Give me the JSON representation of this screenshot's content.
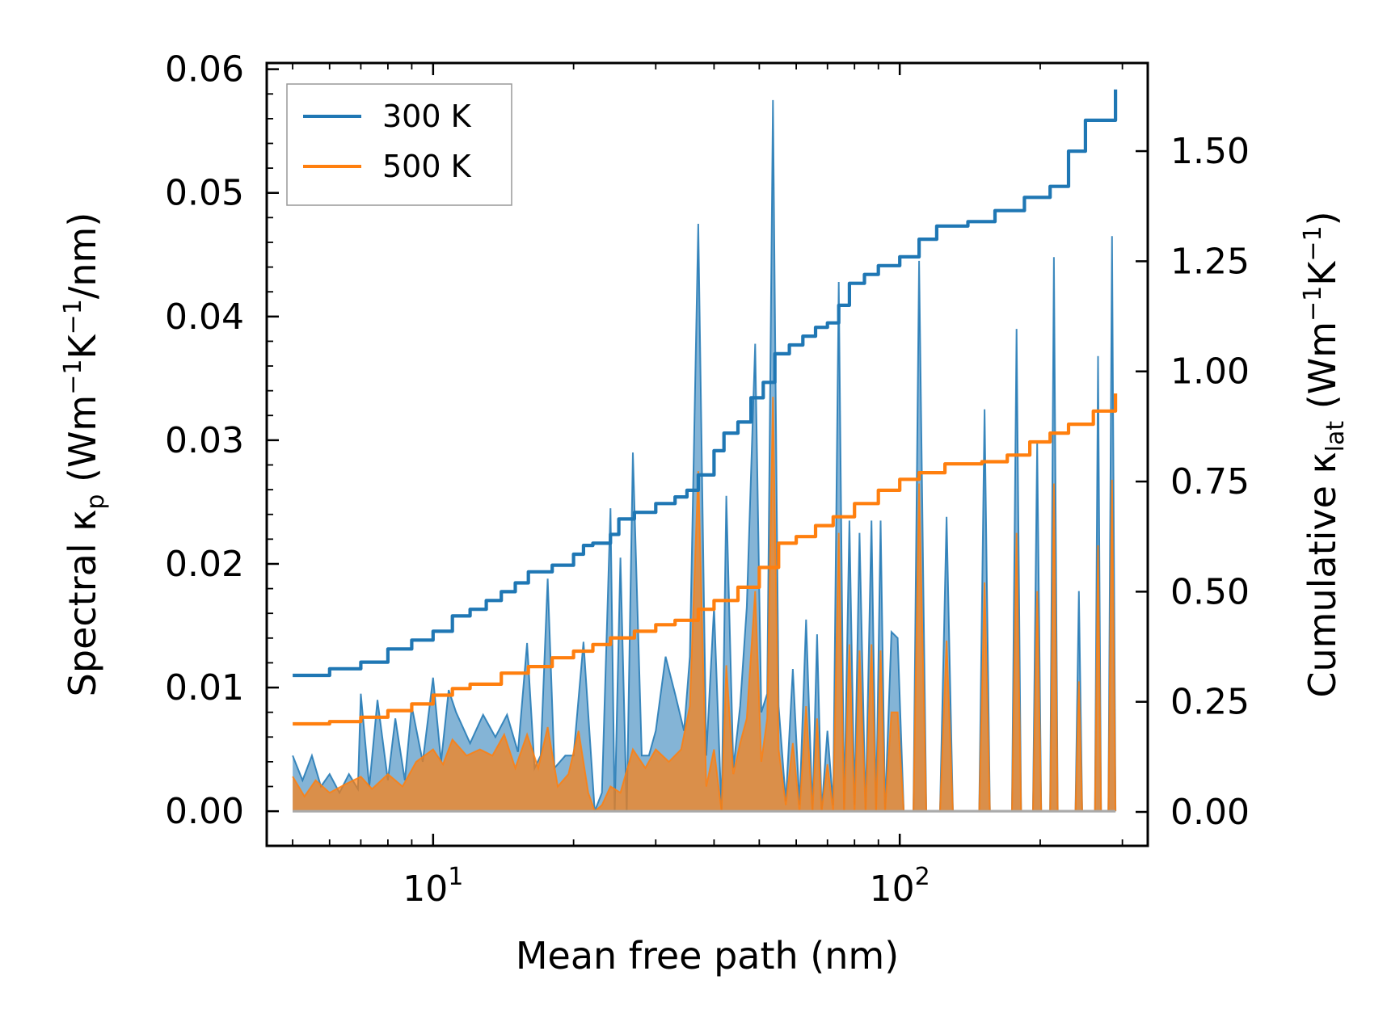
{
  "chart_data": {
    "type": "line",
    "title": "",
    "xlabel": "Mean free path (nm)",
    "xscale": "log",
    "xlim": [
      4.4,
      340
    ],
    "x_tick_labels": [
      {
        "value": 10,
        "base": "10",
        "exp": "1"
      },
      {
        "value": 100,
        "base": "10",
        "exp": "2"
      }
    ],
    "ylabel_left": {
      "pre": "Spectral κ",
      "sub": "p",
      "mid": " (Wm",
      "sup1": "−1",
      "k": "K",
      "sup2": "−1",
      "post": "/nm)"
    },
    "ylim_left": [
      -0.0028,
      0.0605
    ],
    "yticks_left": [
      0.0,
      0.01,
      0.02,
      0.03,
      0.04,
      0.05,
      0.06
    ],
    "ytick_labels_left": [
      "0.00",
      "0.01",
      "0.02",
      "0.03",
      "0.04",
      "0.05",
      "0.06"
    ],
    "ylabel_right": {
      "pre": "Cumulative κ",
      "sub": "lat",
      "mid": " (Wm",
      "sup1": "−1",
      "k": "K",
      "sup2": "−1",
      "post": ")"
    },
    "ylim_right": [
      -0.077,
      1.7
    ],
    "yticks_right": [
      0.0,
      0.25,
      0.5,
      0.75,
      1.0,
      1.25,
      1.5
    ],
    "ytick_labels_right": [
      "0.00",
      "0.25",
      "0.50",
      "0.75",
      "1.00",
      "1.25",
      "1.50"
    ],
    "legend": {
      "position": "top-left",
      "entries": [
        {
          "label": "300 K",
          "color": "#1f77b4"
        },
        {
          "label": "500 K",
          "color": "#ff7f0e"
        }
      ]
    },
    "series": [
      {
        "name": "300 K",
        "color": "#1f77b4",
        "axis": "right",
        "kind": "cumulative",
        "points": [
          [
            5.0,
            0.31
          ],
          [
            6.0,
            0.325
          ],
          [
            7.0,
            0.34
          ],
          [
            8.0,
            0.37
          ],
          [
            9.0,
            0.39
          ],
          [
            10.0,
            0.41
          ],
          [
            11.0,
            0.445
          ],
          [
            12.0,
            0.46
          ],
          [
            13.0,
            0.48
          ],
          [
            14.0,
            0.5
          ],
          [
            15.0,
            0.52
          ],
          [
            16.0,
            0.545
          ],
          [
            18.0,
            0.56
          ],
          [
            20.0,
            0.585
          ],
          [
            21.0,
            0.605
          ],
          [
            22.0,
            0.61
          ],
          [
            24.0,
            0.63
          ],
          [
            25.0,
            0.665
          ],
          [
            27.0,
            0.68
          ],
          [
            30.0,
            0.7
          ],
          [
            33.0,
            0.715
          ],
          [
            35.0,
            0.73
          ],
          [
            37.0,
            0.765
          ],
          [
            40.0,
            0.82
          ],
          [
            42.0,
            0.86
          ],
          [
            45.0,
            0.885
          ],
          [
            48.0,
            0.94
          ],
          [
            51.0,
            0.975
          ],
          [
            54.0,
            1.04
          ],
          [
            58.0,
            1.06
          ],
          [
            62.0,
            1.08
          ],
          [
            66.0,
            1.1
          ],
          [
            70.0,
            1.11
          ],
          [
            74.0,
            1.15
          ],
          [
            78.0,
            1.2
          ],
          [
            84.0,
            1.22
          ],
          [
            90.0,
            1.24
          ],
          [
            100.0,
            1.26
          ],
          [
            110.0,
            1.3
          ],
          [
            120.0,
            1.33
          ],
          [
            140.0,
            1.34
          ],
          [
            160.0,
            1.365
          ],
          [
            185.0,
            1.395
          ],
          [
            210.0,
            1.42
          ],
          [
            230.0,
            1.5
          ],
          [
            250.0,
            1.57
          ],
          [
            290.0,
            1.64
          ]
        ]
      },
      {
        "name": "500 K",
        "color": "#ff7f0e",
        "axis": "right",
        "kind": "cumulative",
        "points": [
          [
            5.0,
            0.2
          ],
          [
            6.0,
            0.205
          ],
          [
            7.0,
            0.215
          ],
          [
            8.0,
            0.23
          ],
          [
            9.0,
            0.245
          ],
          [
            10.0,
            0.265
          ],
          [
            11.0,
            0.28
          ],
          [
            12.0,
            0.29
          ],
          [
            14.0,
            0.315
          ],
          [
            16.0,
            0.33
          ],
          [
            18.0,
            0.35
          ],
          [
            20.0,
            0.365
          ],
          [
            22.0,
            0.38
          ],
          [
            24.0,
            0.395
          ],
          [
            27.0,
            0.41
          ],
          [
            30.0,
            0.425
          ],
          [
            33.0,
            0.435
          ],
          [
            37.0,
            0.46
          ],
          [
            40.0,
            0.48
          ],
          [
            45.0,
            0.51
          ],
          [
            50.0,
            0.555
          ],
          [
            55.0,
            0.61
          ],
          [
            60.0,
            0.625
          ],
          [
            66.0,
            0.65
          ],
          [
            72.0,
            0.67
          ],
          [
            80.0,
            0.7
          ],
          [
            90.0,
            0.73
          ],
          [
            100.0,
            0.755
          ],
          [
            110.0,
            0.77
          ],
          [
            125.0,
            0.79
          ],
          [
            150.0,
            0.795
          ],
          [
            170.0,
            0.81
          ],
          [
            190.0,
            0.84
          ],
          [
            210.0,
            0.86
          ],
          [
            230.0,
            0.88
          ],
          [
            260.0,
            0.91
          ],
          [
            290.0,
            0.95
          ]
        ]
      },
      {
        "name": "300 K spectral",
        "color": "#1f77b4",
        "axis": "left",
        "kind": "spectral",
        "points": [
          [
            5.0,
            0.0045
          ],
          [
            5.25,
            0.0025
          ],
          [
            5.5,
            0.0045
          ],
          [
            5.75,
            0.002
          ],
          [
            6.0,
            0.003
          ],
          [
            6.3,
            0.0015
          ],
          [
            6.6,
            0.003
          ],
          [
            6.9,
            0.0018
          ],
          [
            7.0,
            0.0095
          ],
          [
            7.3,
            0.002
          ],
          [
            7.6,
            0.009
          ],
          [
            8.0,
            0.0025
          ],
          [
            8.3,
            0.0075
          ],
          [
            8.7,
            0.0025
          ],
          [
            9.0,
            0.0085
          ],
          [
            9.5,
            0.004
          ],
          [
            10.0,
            0.0108
          ],
          [
            10.4,
            0.004
          ],
          [
            10.8,
            0.0098
          ],
          [
            11.2,
            0.008
          ],
          [
            12.0,
            0.0055
          ],
          [
            12.8,
            0.0078
          ],
          [
            13.6,
            0.006
          ],
          [
            14.4,
            0.0078
          ],
          [
            15.2,
            0.0048
          ],
          [
            15.9,
            0.0136
          ],
          [
            16.5,
            0.0035
          ],
          [
            17.0,
            0.0045
          ],
          [
            17.6,
            0.0188
          ],
          [
            18.2,
            0.0035
          ],
          [
            19.2,
            0.0045
          ],
          [
            20.0,
            0.0045
          ],
          [
            21.0,
            0.0137
          ],
          [
            22.2,
            0.0
          ],
          [
            23.0,
            0.0015
          ],
          [
            24.0,
            0.0245
          ],
          [
            24.5,
            0.0
          ],
          [
            25.2,
            0.0205
          ],
          [
            26.0,
            0.0
          ],
          [
            26.8,
            0.029
          ],
          [
            28.0,
            0.0045
          ],
          [
            29.0,
            0.0045
          ],
          [
            30.0,
            0.0065
          ],
          [
            31.5,
            0.0125
          ],
          [
            33.0,
            0.0095
          ],
          [
            34.5,
            0.0065
          ],
          [
            35.5,
            0.0125
          ],
          [
            37.0,
            0.0475
          ],
          [
            38.5,
            0.0045
          ],
          [
            40.0,
            0.0165
          ],
          [
            41.5,
            0.0
          ],
          [
            42.5,
            0.0255
          ],
          [
            44.0,
            0.0035
          ],
          [
            45.5,
            0.0085
          ],
          [
            47.0,
            0.0165
          ],
          [
            49.0,
            0.0378
          ],
          [
            50.5,
            0.008
          ],
          [
            52.0,
            0.0095
          ],
          [
            53.5,
            0.0575
          ],
          [
            55.0,
            0.0085
          ],
          [
            57.0,
            0.0008
          ],
          [
            59.0,
            0.0115
          ],
          [
            61.0,
            0.0005
          ],
          [
            63.0,
            0.0155
          ],
          [
            65.0,
            0.0
          ],
          [
            66.5,
            0.0143
          ],
          [
            68.0,
            0.0
          ],
          [
            70.0,
            0.0065
          ],
          [
            72.0,
            0.0005
          ],
          [
            74.0,
            0.0428
          ],
          [
            76.0,
            0.0
          ],
          [
            78.0,
            0.0235
          ],
          [
            80.0,
            0.0005
          ],
          [
            82.0,
            0.0225
          ],
          [
            84.5,
            0.0
          ],
          [
            87.0,
            0.0235
          ],
          [
            89.0,
            0.0
          ],
          [
            91.0,
            0.0235
          ],
          [
            93.0,
            0.0
          ],
          [
            96.0,
            0.0145
          ],
          [
            99.0,
            0.014
          ],
          [
            102.0,
            0.0
          ],
          [
            107.0,
            0.0
          ],
          [
            110.0,
            0.0445
          ],
          [
            114.0,
            0.0
          ],
          [
            122.0,
            0.0
          ],
          [
            126.0,
            0.0238
          ],
          [
            130.0,
            0.0
          ],
          [
            148.0,
            0.0
          ],
          [
            152.0,
            0.0325
          ],
          [
            156.0,
            0.0
          ],
          [
            174.0,
            0.0
          ],
          [
            178.0,
            0.039
          ],
          [
            182.0,
            0.0
          ],
          [
            193.0,
            0.0
          ],
          [
            197.0,
            0.0298
          ],
          [
            201.0,
            0.0
          ],
          [
            210.0,
            0.0
          ],
          [
            214.0,
            0.0448
          ],
          [
            218.0,
            0.0
          ],
          [
            238.0,
            0.0
          ],
          [
            242.0,
            0.0178
          ],
          [
            246.0,
            0.0
          ],
          [
            262.0,
            0.0
          ],
          [
            266.0,
            0.0368
          ],
          [
            270.0,
            0.0
          ],
          [
            280.0,
            0.0
          ],
          [
            285.0,
            0.0465
          ],
          [
            290.0,
            0.0
          ]
        ]
      },
      {
        "name": "500 K spectral",
        "color": "#ff7f0e",
        "axis": "left",
        "kind": "spectral",
        "points": [
          [
            5.0,
            0.0028
          ],
          [
            5.3,
            0.0012
          ],
          [
            5.6,
            0.0025
          ],
          [
            6.0,
            0.0015
          ],
          [
            6.5,
            0.0022
          ],
          [
            7.0,
            0.0028
          ],
          [
            7.4,
            0.0018
          ],
          [
            8.0,
            0.003
          ],
          [
            8.6,
            0.002
          ],
          [
            9.2,
            0.004
          ],
          [
            10.0,
            0.005
          ],
          [
            10.5,
            0.0038
          ],
          [
            11.0,
            0.0058
          ],
          [
            11.8,
            0.0045
          ],
          [
            12.6,
            0.005
          ],
          [
            13.4,
            0.0045
          ],
          [
            14.2,
            0.0062
          ],
          [
            15.0,
            0.0035
          ],
          [
            15.9,
            0.0062
          ],
          [
            16.8,
            0.0035
          ],
          [
            17.6,
            0.0068
          ],
          [
            18.5,
            0.002
          ],
          [
            19.5,
            0.003
          ],
          [
            20.5,
            0.0065
          ],
          [
            21.5,
            0.0015
          ],
          [
            22.2,
            0.0
          ],
          [
            23.0,
            0.0005
          ],
          [
            24.0,
            0.002
          ],
          [
            25.2,
            0.0015
          ],
          [
            26.8,
            0.005
          ],
          [
            28.5,
            0.0035
          ],
          [
            30.0,
            0.005
          ],
          [
            32.0,
            0.004
          ],
          [
            34.0,
            0.005
          ],
          [
            35.5,
            0.0085
          ],
          [
            37.0,
            0.0275
          ],
          [
            38.5,
            0.002
          ],
          [
            40.0,
            0.005
          ],
          [
            41.5,
            0.0
          ],
          [
            42.5,
            0.0118
          ],
          [
            44.0,
            0.003
          ],
          [
            45.5,
            0.0055
          ],
          [
            47.0,
            0.0075
          ],
          [
            49.0,
            0.0178
          ],
          [
            50.5,
            0.004
          ],
          [
            52.0,
            0.0075
          ],
          [
            53.5,
            0.0335
          ],
          [
            55.0,
            0.005
          ],
          [
            57.0,
            0.0005
          ],
          [
            59.0,
            0.0055
          ],
          [
            61.0,
            0.0
          ],
          [
            63.0,
            0.0085
          ],
          [
            65.0,
            0.0
          ],
          [
            66.5,
            0.0075
          ],
          [
            68.0,
            0.0
          ],
          [
            70.0,
            0.0038
          ],
          [
            72.0,
            0.0
          ],
          [
            74.0,
            0.0225
          ],
          [
            76.0,
            0.0
          ],
          [
            78.0,
            0.0135
          ],
          [
            80.0,
            0.0
          ],
          [
            82.0,
            0.013
          ],
          [
            84.5,
            0.0
          ],
          [
            87.0,
            0.0135
          ],
          [
            89.0,
            0.0
          ],
          [
            91.0,
            0.013
          ],
          [
            93.0,
            0.0
          ],
          [
            96.0,
            0.008
          ],
          [
            99.0,
            0.008
          ],
          [
            102.0,
            0.0
          ],
          [
            107.0,
            0.0
          ],
          [
            110.0,
            0.0265
          ],
          [
            114.0,
            0.0
          ],
          [
            122.0,
            0.0
          ],
          [
            126.0,
            0.0138
          ],
          [
            130.0,
            0.0
          ],
          [
            148.0,
            0.0
          ],
          [
            152.0,
            0.0185
          ],
          [
            156.0,
            0.0
          ],
          [
            174.0,
            0.0
          ],
          [
            178.0,
            0.0225
          ],
          [
            182.0,
            0.0
          ],
          [
            193.0,
            0.0
          ],
          [
            197.0,
            0.0178
          ],
          [
            201.0,
            0.0
          ],
          [
            210.0,
            0.0
          ],
          [
            214.0,
            0.0265
          ],
          [
            218.0,
            0.0
          ],
          [
            238.0,
            0.0
          ],
          [
            242.0,
            0.0105
          ],
          [
            246.0,
            0.0
          ],
          [
            262.0,
            0.0
          ],
          [
            266.0,
            0.0215
          ],
          [
            270.0,
            0.0
          ],
          [
            280.0,
            0.0
          ],
          [
            285.0,
            0.0268
          ],
          [
            290.0,
            0.0
          ]
        ]
      }
    ]
  }
}
